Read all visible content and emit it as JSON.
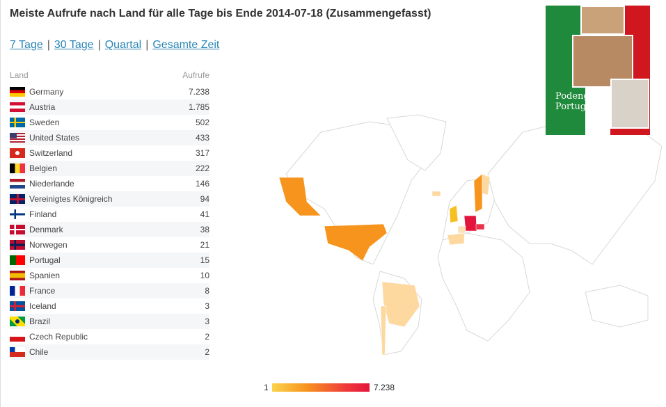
{
  "header": {
    "title": "Meiste Aufrufe nach Land für alle Tage bis Ende 2014-07-18 (Zusammengefasst)"
  },
  "periods": {
    "links": [
      "7 Tage",
      "30 Tage",
      "Quartal",
      "Gesamte Zeit"
    ],
    "separator": "|"
  },
  "table": {
    "columns": [
      "Land",
      "Aufrufe"
    ],
    "rows": [
      [
        "Germany",
        "7.238"
      ],
      [
        "Austria",
        "1.785"
      ],
      [
        "Sweden",
        "502"
      ],
      [
        "United States",
        "433"
      ],
      [
        "Switzerland",
        "317"
      ],
      [
        "Belgien",
        "222"
      ],
      [
        "Niederlande",
        "146"
      ],
      [
        "Vereinigtes Königreich",
        "94"
      ],
      [
        "Finland",
        "41"
      ],
      [
        "Denmark",
        "38"
      ],
      [
        "Norwegen",
        "21"
      ],
      [
        "Portugal",
        "15"
      ],
      [
        "Spanien",
        "10"
      ],
      [
        "France",
        "8"
      ],
      [
        "Iceland",
        "3"
      ],
      [
        "Brazil",
        "3"
      ],
      [
        "Czech Republic",
        "2"
      ],
      [
        "Chile",
        "2"
      ]
    ]
  },
  "legend": {
    "min": "1",
    "max": "7.238"
  },
  "book": {
    "title": "Podengo Portugues"
  }
}
